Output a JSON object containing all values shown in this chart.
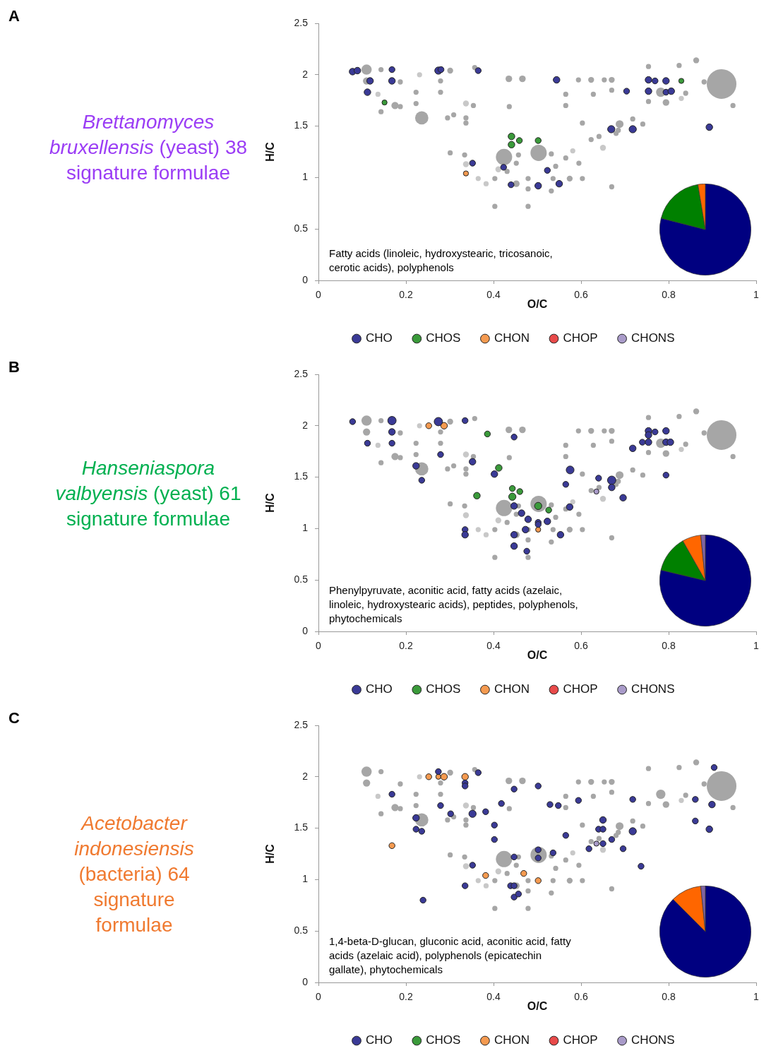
{
  "chart_data": [
    {
      "type": "bubble",
      "title": "Brettanomyces bruxellensis",
      "subtitle": "(yeast) 38 signature formulae",
      "xlabel": "O/C",
      "ylabel": "H/C",
      "xlim": [
        0,
        1
      ],
      "ylim": [
        0,
        2.5
      ],
      "xticks": [
        0,
        0.2,
        0.4,
        0.6,
        0.8,
        1
      ],
      "yticks": [
        0,
        0.5,
        1,
        1.5,
        2,
        2.5
      ],
      "grid": false,
      "legend": "bottom",
      "marker": "circle",
      "annotations": [
        "A",
        "Fatty acids (linoleic, hydroxystearic, tricosanoic, cerotic acids), polyphenols"
      ],
      "series": [
        {
          "color": "#a6a6a6",
          "x": [
            0.921,
            0.424,
            0.503,
            0.236,
            0.11,
            0.782,
            0.688,
            0.301,
            0.435,
            0.466,
            0.623,
            0.67,
            0.863,
            0.794,
            0.175,
            0.187,
            0.143,
            0.279,
            0.279,
            0.223,
            0.223,
            0.436,
            0.565,
            0.565,
            0.628,
            0.295,
            0.309,
            0.603,
            0.641,
            0.623,
            0.718,
            0.741,
            0.685,
            0.68,
            0.301,
            0.334,
            0.457,
            0.452,
            0.431,
            0.532,
            0.565,
            0.595,
            0.542,
            0.574,
            0.603,
            0.479,
            0.403,
            0.452,
            0.536,
            0.532,
            0.479,
            0.403,
            0.479,
            0.67,
            0.881,
            0.947,
            0.839,
            0.754,
            0.754,
            0.824,
            0.594,
            0.653,
            0.67,
            0.357,
            0.187,
            0.11,
            0.143,
            0.354,
            0.337,
            0.337
          ],
          "values": [
            1.91,
            1.2,
            1.24,
            1.58,
            2.05,
            1.83,
            1.52,
            2.04,
            1.96,
            1.96,
            1.95,
            1.95,
            2.14,
            1.73,
            1.7,
            1.69,
            1.64,
            1.94,
            1.83,
            1.83,
            1.72,
            1.69,
            1.81,
            1.7,
            1.81,
            1.58,
            1.61,
            1.53,
            1.4,
            1.37,
            1.57,
            1.52,
            1.46,
            1.43,
            1.24,
            1.22,
            1.22,
            1.14,
            1.06,
            1.23,
            1.19,
            1.14,
            1.11,
            0.99,
            0.99,
            0.99,
            0.99,
            0.94,
            0.99,
            0.87,
            0.89,
            0.72,
            0.72,
            0.91,
            1.93,
            1.7,
            1.82,
            1.74,
            2.08,
            2.09,
            1.95,
            1.95,
            1.85,
            2.07,
            1.93,
            1.94,
            2.05,
            1.7,
            1.58,
            1.53
          ],
          "sizes": [
            1,
            0.3,
            0.3,
            0.2,
            0.12,
            0.1,
            0.07,
            0.04,
            0.05,
            0.05,
            0.04,
            0.04,
            0.04,
            0.05,
            0.06,
            0.03,
            0.03,
            0.03,
            0.03,
            0.03,
            0.03,
            0.03,
            0.03,
            0.03,
            0.03,
            0.03,
            0.03,
            0.03,
            0.03,
            0.03,
            0.03,
            0.03,
            0.03,
            0.03,
            0.03,
            0.03,
            0.03,
            0.03,
            0.03,
            0.03,
            0.03,
            0.03,
            0.03,
            0.04,
            0.03,
            0.03,
            0.03,
            0.05,
            0.03,
            0.03,
            0.03,
            0.03,
            0.03,
            0.03,
            0.03,
            0.03,
            0.03,
            0.03,
            0.03,
            0.03,
            0.03,
            0.03,
            0.03,
            0.03,
            0.03,
            0.06,
            0.03,
            0.03,
            0.03,
            0.03
          ]
        },
        {
          "color": "#c8c8c8",
          "x": [
            0.337,
            0.65,
            0.337,
            0.411,
            0.581,
            0.365,
            0.383,
            0.231,
            0.136,
            0.829
          ],
          "values": [
            1.72,
            1.29,
            1.13,
            1.08,
            1.26,
            0.99,
            0.94,
            2.0,
            1.81,
            1.77
          ],
          "sizes": [
            0.04,
            0.04,
            0.04,
            0.04,
            0.03,
            0.03,
            0.03,
            0.03,
            0.03,
            0.03
          ]
        },
        {
          "name": "CHO",
          "color": "#3a3a96",
          "x": [
            0.078,
            0.089,
            0.168,
            0.118,
            0.168,
            0.112,
            0.274,
            0.28,
            0.365,
            0.544,
            0.754,
            0.769,
            0.794,
            0.704,
            0.754,
            0.794,
            0.806,
            0.669,
            0.718,
            0.893,
            0.352,
            0.423,
            0.523,
            0.44,
            0.502,
            0.55
          ],
          "values": [
            2.03,
            2.04,
            2.05,
            1.94,
            1.94,
            1.83,
            2.04,
            2.05,
            2.04,
            1.95,
            1.95,
            1.94,
            1.94,
            1.84,
            1.84,
            1.83,
            1.84,
            1.47,
            1.47,
            1.49,
            1.14,
            1.1,
            1.07,
            0.93,
            0.92,
            0.94
          ],
          "sizes": [
            0.05,
            0.05,
            0.04,
            0.05,
            0.05,
            0.05,
            0.06,
            0.04,
            0.04,
            0.05,
            0.05,
            0.04,
            0.05,
            0.04,
            0.05,
            0.04,
            0.05,
            0.06,
            0.06,
            0.05,
            0.04,
            0.04,
            0.04,
            0.04,
            0.05,
            0.05
          ]
        },
        {
          "name": "CHOS",
          "color": "#3a9a3a",
          "x": [
            0.151,
            0.829,
            0.441,
            0.459,
            0.441,
            0.502
          ],
          "values": [
            1.73,
            1.94,
            1.4,
            1.36,
            1.32,
            1.36
          ],
          "sizes": [
            0.03,
            0.03,
            0.05,
            0.04,
            0.05,
            0.04
          ]
        },
        {
          "name": "CHON",
          "color": "#f59a50",
          "x": [
            0.337
          ],
          "values": [
            1.04
          ],
          "sizes": [
            0.03
          ]
        },
        {
          "name": "CHOP",
          "color": "#e84a4a"
        },
        {
          "name": "CHONS",
          "color": "#a99bc9"
        }
      ]
    },
    {
      "type": "pie",
      "categories": [
        null,
        null,
        null
      ],
      "values": [
        79,
        18.4,
        2.6
      ],
      "colors": [
        "#000080",
        "#008000",
        "#ff6600"
      ]
    },
    {
      "type": "bubble",
      "title": "Hanseniaspora valbyensis",
      "subtitle": "(yeast) 61 signature formulae",
      "xlabel": "O/C",
      "ylabel": "H/C",
      "xlim": [
        0,
        1
      ],
      "ylim": [
        0,
        2.5
      ],
      "xticks": [
        0,
        0.2,
        0.4,
        0.6,
        0.8,
        1
      ],
      "yticks": [
        0,
        0.5,
        1,
        1.5,
        2,
        2.5
      ],
      "grid": false,
      "legend": "bottom",
      "marker": "circle",
      "annotations": [
        "B",
        "Phenylpyruvate, aconitic acid, fatty acids (azelaic, linoleic, hydroxystearic acids), peptides, polyphenols, phytochemicals"
      ],
      "series": [
        {
          "color": "#a6a6a6",
          "x": [
            0.921,
            0.424,
            0.503,
            0.236,
            0.11,
            0.782,
            0.688,
            0.301,
            0.435,
            0.466,
            0.623,
            0.67,
            0.863,
            0.794,
            0.175,
            0.187,
            0.143,
            0.279,
            0.279,
            0.223,
            0.223,
            0.436,
            0.565,
            0.565,
            0.628,
            0.295,
            0.309,
            0.603,
            0.641,
            0.623,
            0.718,
            0.741,
            0.685,
            0.68,
            0.301,
            0.334,
            0.457,
            0.452,
            0.431,
            0.532,
            0.565,
            0.595,
            0.542,
            0.574,
            0.603,
            0.479,
            0.403,
            0.452,
            0.536,
            0.532,
            0.479,
            0.403,
            0.479,
            0.67,
            0.881,
            0.947,
            0.839,
            0.754,
            0.754,
            0.824,
            0.594,
            0.653,
            0.67,
            0.357,
            0.187,
            0.11,
            0.143,
            0.354,
            0.337,
            0.337
          ],
          "values": [
            1.91,
            1.2,
            1.24,
            1.58,
            2.05,
            1.83,
            1.52,
            2.04,
            1.96,
            1.96,
            1.95,
            1.95,
            2.14,
            1.73,
            1.7,
            1.69,
            1.64,
            1.94,
            1.83,
            1.83,
            1.72,
            1.69,
            1.81,
            1.7,
            1.81,
            1.58,
            1.61,
            1.53,
            1.4,
            1.37,
            1.57,
            1.52,
            1.46,
            1.43,
            1.24,
            1.22,
            1.22,
            1.14,
            1.06,
            1.23,
            1.19,
            1.14,
            1.11,
            0.99,
            0.99,
            0.99,
            0.99,
            0.94,
            0.99,
            0.87,
            0.89,
            0.72,
            0.72,
            0.91,
            1.93,
            1.7,
            1.82,
            1.74,
            2.08,
            2.09,
            1.95,
            1.95,
            1.85,
            2.07,
            1.93,
            1.94,
            2.05,
            1.7,
            1.58,
            1.53
          ],
          "sizes": [
            1,
            0.3,
            0.3,
            0.2,
            0.12,
            0.1,
            0.07,
            0.04,
            0.05,
            0.05,
            0.04,
            0.04,
            0.04,
            0.05,
            0.06,
            0.03,
            0.03,
            0.03,
            0.03,
            0.03,
            0.03,
            0.03,
            0.03,
            0.03,
            0.03,
            0.03,
            0.03,
            0.03,
            0.03,
            0.03,
            0.03,
            0.03,
            0.03,
            0.03,
            0.03,
            0.03,
            0.03,
            0.03,
            0.03,
            0.03,
            0.03,
            0.03,
            0.03,
            0.04,
            0.03,
            0.03,
            0.03,
            0.05,
            0.03,
            0.03,
            0.03,
            0.03,
            0.03,
            0.03,
            0.03,
            0.03,
            0.03,
            0.03,
            0.03,
            0.03,
            0.03,
            0.03,
            0.03,
            0.03,
            0.03,
            0.06,
            0.03,
            0.03,
            0.03,
            0.03
          ]
        },
        {
          "color": "#c8c8c8",
          "x": [
            0.337,
            0.65,
            0.337,
            0.411,
            0.581,
            0.365,
            0.383,
            0.231,
            0.136,
            0.829
          ],
          "values": [
            1.72,
            1.29,
            1.13,
            1.08,
            1.26,
            0.99,
            0.94,
            2.0,
            1.81,
            1.77
          ],
          "sizes": [
            0.04,
            0.04,
            0.04,
            0.04,
            0.03,
            0.03,
            0.03,
            0.03,
            0.03,
            0.03
          ]
        },
        {
          "name": "CHO",
          "color": "#3a3a96",
          "x": [
            0.078,
            0.168,
            0.168,
            0.112,
            0.168,
            0.274,
            0.335,
            0.447,
            0.279,
            0.352,
            0.223,
            0.236,
            0.402,
            0.575,
            0.565,
            0.64,
            0.67,
            0.67,
            0.696,
            0.718,
            0.74,
            0.754,
            0.754,
            0.754,
            0.769,
            0.794,
            0.794,
            0.804,
            0.794,
            0.447,
            0.464,
            0.479,
            0.502,
            0.502,
            0.523,
            0.473,
            0.447,
            0.574,
            0.553,
            0.335,
            0.335,
            0.447,
            0.476
          ],
          "values": [
            2.04,
            2.05,
            1.94,
            1.83,
            1.83,
            2.04,
            2.05,
            1.89,
            1.72,
            1.65,
            1.61,
            1.47,
            1.53,
            1.57,
            1.43,
            1.49,
            1.47,
            1.4,
            1.3,
            1.78,
            1.84,
            1.84,
            1.95,
            1.91,
            1.94,
            1.95,
            1.84,
            1.84,
            1.52,
            1.22,
            1.15,
            1.09,
            1.06,
            1.04,
            1.07,
            0.99,
            0.94,
            1.21,
            0.94,
            0.99,
            0.94,
            0.83,
            0.78
          ],
          "sizes": [
            0.04,
            0.08,
            0.05,
            0.04,
            0.04,
            0.08,
            0.04,
            0.04,
            0.04,
            0.05,
            0.05,
            0.04,
            0.05,
            0.07,
            0.04,
            0.04,
            0.08,
            0.05,
            0.05,
            0.05,
            0.04,
            0.05,
            0.05,
            0.05,
            0.04,
            0.05,
            0.05,
            0.05,
            0.04,
            0.05,
            0.05,
            0.05,
            0.04,
            0.04,
            0.05,
            0.05,
            0.05,
            0.05,
            0.05,
            0.04,
            0.05,
            0.05,
            0.04
          ]
        },
        {
          "name": "CHOS",
          "color": "#3a9a3a",
          "x": [
            0.386,
            0.412,
            0.362,
            0.443,
            0.46,
            0.443,
            0.502,
            0.526
          ],
          "values": [
            1.92,
            1.59,
            1.32,
            1.39,
            1.36,
            1.31,
            1.22,
            1.18
          ],
          "sizes": [
            0.04,
            0.05,
            0.05,
            0.04,
            0.04,
            0.06,
            0.06,
            0.04
          ]
        },
        {
          "name": "CHON",
          "color": "#f59a50",
          "x": [
            0.252,
            0.287,
            0.502
          ],
          "values": [
            2.0,
            2.0,
            0.99
          ],
          "sizes": [
            0.04,
            0.05,
            0.03
          ]
        },
        {
          "name": "CHOP",
          "color": "#e84a4a"
        },
        {
          "name": "CHONS",
          "color": "#a99bc9",
          "x": [
            0.635
          ],
          "values": [
            1.36
          ],
          "sizes": [
            0.03
          ]
        }
      ]
    },
    {
      "type": "pie",
      "categories": [
        null,
        null,
        null,
        null
      ],
      "values": [
        78.7,
        13.1,
        6.6,
        1.6
      ],
      "colors": [
        "#000080",
        "#008000",
        "#ff6600",
        "#8064a2"
      ]
    },
    {
      "type": "bubble",
      "title": "Acetobacter indonesiensis",
      "subtitle": "(bacteria) 64 signature formulae",
      "xlabel": "O/C",
      "ylabel": "H/C",
      "xlim": [
        0,
        1
      ],
      "ylim": [
        0,
        2.5
      ],
      "xticks": [
        0,
        0.2,
        0.4,
        0.6,
        0.8,
        1
      ],
      "yticks": [
        0,
        0.5,
        1,
        1.5,
        2,
        2.5
      ],
      "grid": false,
      "legend": "bottom",
      "marker": "circle",
      "annotations": [
        "C",
        "1,4-beta-D-glucan, gluconic acid, aconitic acid, fatty acids (azelaic acid), polyphenols (epicatechin gallate), phytochemicals"
      ],
      "series": [
        {
          "color": "#a6a6a6",
          "x": [
            0.921,
            0.424,
            0.503,
            0.236,
            0.11,
            0.782,
            0.688,
            0.301,
            0.435,
            0.466,
            0.623,
            0.67,
            0.863,
            0.794,
            0.175,
            0.187,
            0.143,
            0.279,
            0.279,
            0.223,
            0.223,
            0.436,
            0.565,
            0.565,
            0.628,
            0.295,
            0.309,
            0.603,
            0.641,
            0.623,
            0.718,
            0.741,
            0.685,
            0.68,
            0.301,
            0.334,
            0.457,
            0.452,
            0.431,
            0.532,
            0.565,
            0.595,
            0.542,
            0.574,
            0.603,
            0.479,
            0.403,
            0.452,
            0.536,
            0.532,
            0.479,
            0.403,
            0.479,
            0.67,
            0.881,
            0.947,
            0.839,
            0.754,
            0.754,
            0.824,
            0.594,
            0.653,
            0.67,
            0.357,
            0.187,
            0.11,
            0.143,
            0.354,
            0.337,
            0.337
          ],
          "values": [
            1.91,
            1.2,
            1.24,
            1.58,
            2.05,
            1.83,
            1.52,
            2.04,
            1.96,
            1.96,
            1.95,
            1.95,
            2.14,
            1.73,
            1.7,
            1.69,
            1.64,
            1.94,
            1.83,
            1.83,
            1.72,
            1.69,
            1.81,
            1.7,
            1.81,
            1.58,
            1.61,
            1.53,
            1.4,
            1.37,
            1.57,
            1.52,
            1.46,
            1.43,
            1.24,
            1.22,
            1.22,
            1.14,
            1.06,
            1.23,
            1.19,
            1.14,
            1.11,
            0.99,
            0.99,
            0.99,
            0.99,
            0.94,
            0.99,
            0.87,
            0.89,
            0.72,
            0.72,
            0.91,
            1.93,
            1.7,
            1.82,
            1.74,
            2.08,
            2.09,
            1.95,
            1.95,
            1.85,
            2.07,
            1.93,
            1.94,
            2.05,
            1.7,
            1.58,
            1.53
          ],
          "sizes": [
            1,
            0.3,
            0.3,
            0.2,
            0.12,
            0.1,
            0.07,
            0.04,
            0.05,
            0.05,
            0.04,
            0.04,
            0.04,
            0.05,
            0.06,
            0.03,
            0.03,
            0.03,
            0.03,
            0.03,
            0.03,
            0.03,
            0.03,
            0.03,
            0.03,
            0.03,
            0.03,
            0.03,
            0.03,
            0.03,
            0.03,
            0.03,
            0.03,
            0.03,
            0.03,
            0.03,
            0.03,
            0.03,
            0.03,
            0.03,
            0.03,
            0.03,
            0.03,
            0.04,
            0.03,
            0.03,
            0.03,
            0.05,
            0.03,
            0.03,
            0.03,
            0.03,
            0.03,
            0.03,
            0.03,
            0.03,
            0.03,
            0.03,
            0.03,
            0.03,
            0.03,
            0.03,
            0.03,
            0.03,
            0.03,
            0.06,
            0.03,
            0.03,
            0.03,
            0.03
          ]
        },
        {
          "color": "#c8c8c8",
          "x": [
            0.337,
            0.65,
            0.337,
            0.411,
            0.581,
            0.365,
            0.383,
            0.231,
            0.136,
            0.829
          ],
          "values": [
            1.72,
            1.29,
            1.13,
            1.08,
            1.26,
            0.99,
            0.94,
            2.0,
            1.81,
            1.77
          ],
          "sizes": [
            0.04,
            0.04,
            0.04,
            0.04,
            0.03,
            0.03,
            0.03,
            0.03,
            0.03,
            0.03
          ]
        },
        {
          "name": "CHO",
          "color": "#3a3a96",
          "x": [
            0.274,
            0.365,
            0.168,
            0.335,
            0.335,
            0.447,
            0.502,
            0.279,
            0.302,
            0.352,
            0.382,
            0.418,
            0.223,
            0.223,
            0.236,
            0.402,
            0.402,
            0.529,
            0.548,
            0.594,
            0.565,
            0.536,
            0.502,
            0.502,
            0.447,
            0.352,
            0.335,
            0.439,
            0.447,
            0.447,
            0.457,
            0.239,
            0.65,
            0.64,
            0.65,
            0.67,
            0.65,
            0.618,
            0.696,
            0.718,
            0.718,
            0.737,
            0.861,
            0.899,
            0.861,
            0.893,
            0.904
          ],
          "values": [
            2.05,
            2.04,
            1.83,
            1.94,
            1.91,
            1.88,
            1.91,
            1.72,
            1.64,
            1.64,
            1.66,
            1.74,
            1.6,
            1.49,
            1.47,
            1.53,
            1.39,
            1.73,
            1.72,
            1.77,
            1.43,
            1.26,
            1.29,
            1.21,
            1.22,
            1.14,
            0.94,
            0.94,
            0.94,
            0.83,
            0.86,
            0.8,
            1.58,
            1.49,
            1.49,
            1.39,
            1.35,
            1.3,
            1.3,
            1.47,
            1.78,
            1.13,
            1.78,
            1.73,
            1.57,
            1.49,
            2.09
          ],
          "sizes": [
            0.04,
            0.04,
            0.04,
            0.04,
            0.04,
            0.04,
            0.04,
            0.04,
            0.04,
            0.06,
            0.04,
            0.04,
            0.05,
            0.04,
            0.04,
            0.04,
            0.04,
            0.04,
            0.04,
            0.04,
            0.04,
            0.04,
            0.04,
            0.04,
            0.04,
            0.04,
            0.04,
            0.04,
            0.04,
            0.04,
            0.04,
            0.04,
            0.05,
            0.04,
            0.04,
            0.04,
            0.04,
            0.04,
            0.04,
            0.06,
            0.04,
            0.04,
            0.04,
            0.05,
            0.04,
            0.05,
            0.04
          ]
        },
        {
          "name": "CHOS",
          "color": "#3a9a3a"
        },
        {
          "name": "CHON",
          "color": "#f59a50",
          "x": [
            0.252,
            0.274,
            0.287,
            0.335,
            0.168,
            0.382,
            0.469,
            0.502
          ],
          "values": [
            2.0,
            2.0,
            2.0,
            2.0,
            1.33,
            1.04,
            1.06,
            0.99
          ],
          "sizes": [
            0.04,
            0.03,
            0.05,
            0.05,
            0.04,
            0.04,
            0.04,
            0.04
          ]
        },
        {
          "name": "CHOP",
          "color": "#e84a4a"
        },
        {
          "name": "CHONS",
          "color": "#a99bc9",
          "x": [
            0.635
          ],
          "values": [
            1.35
          ],
          "sizes": [
            0.03
          ]
        }
      ]
    },
    {
      "type": "pie",
      "categories": [
        null,
        null,
        null
      ],
      "values": [
        87.5,
        10.9,
        1.6
      ],
      "colors": [
        "#000080",
        "#ff6600",
        "#8064a2"
      ]
    }
  ]
}
